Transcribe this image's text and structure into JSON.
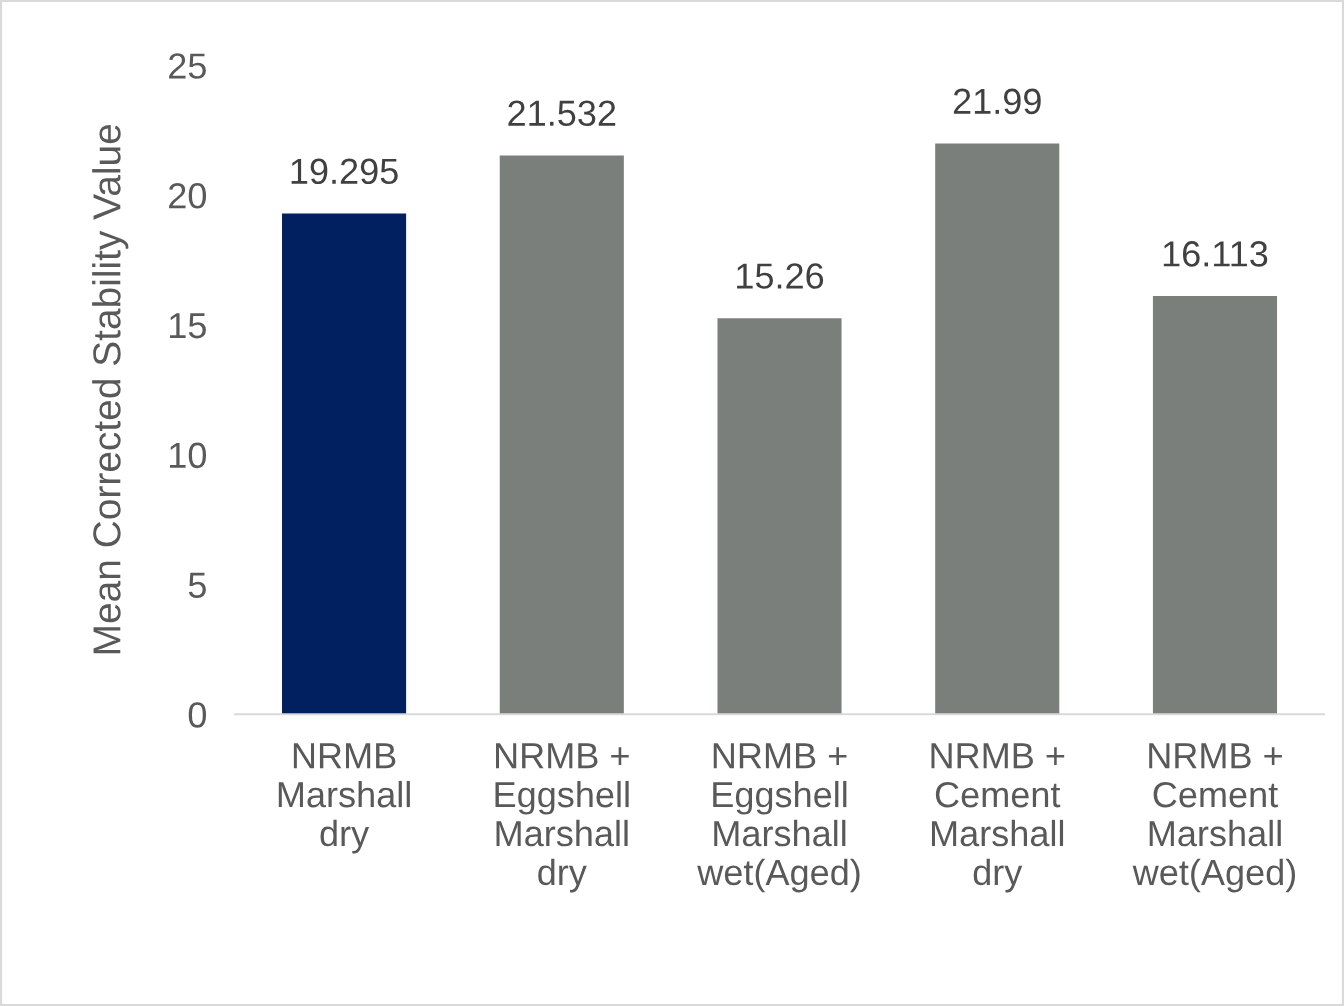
{
  "chart_data": {
    "type": "bar",
    "ylabel": "Mean Corrected Stability Value",
    "categories": [
      "NRMB\nMarshall\ndry",
      "NRMB +\nEggshell\nMarshall\ndry",
      "NRMB +\nEggshell\nMarshall\nwet(Aged)",
      "NRMB +\nCement\nMarshall\ndry",
      "NRMB +\nCement\nMarshall\nwet(Aged)"
    ],
    "values": [
      19.295,
      21.532,
      15.26,
      21.99,
      16.113
    ],
    "colors": [
      "#002060",
      "#7b7f7b",
      "#7b7f7b",
      "#7b7f7b",
      "#7b7f7b"
    ],
    "ylim": [
      0,
      25
    ],
    "yticks": [
      0,
      5,
      10,
      15,
      20,
      25
    ],
    "data_labels": true,
    "grid": false
  }
}
